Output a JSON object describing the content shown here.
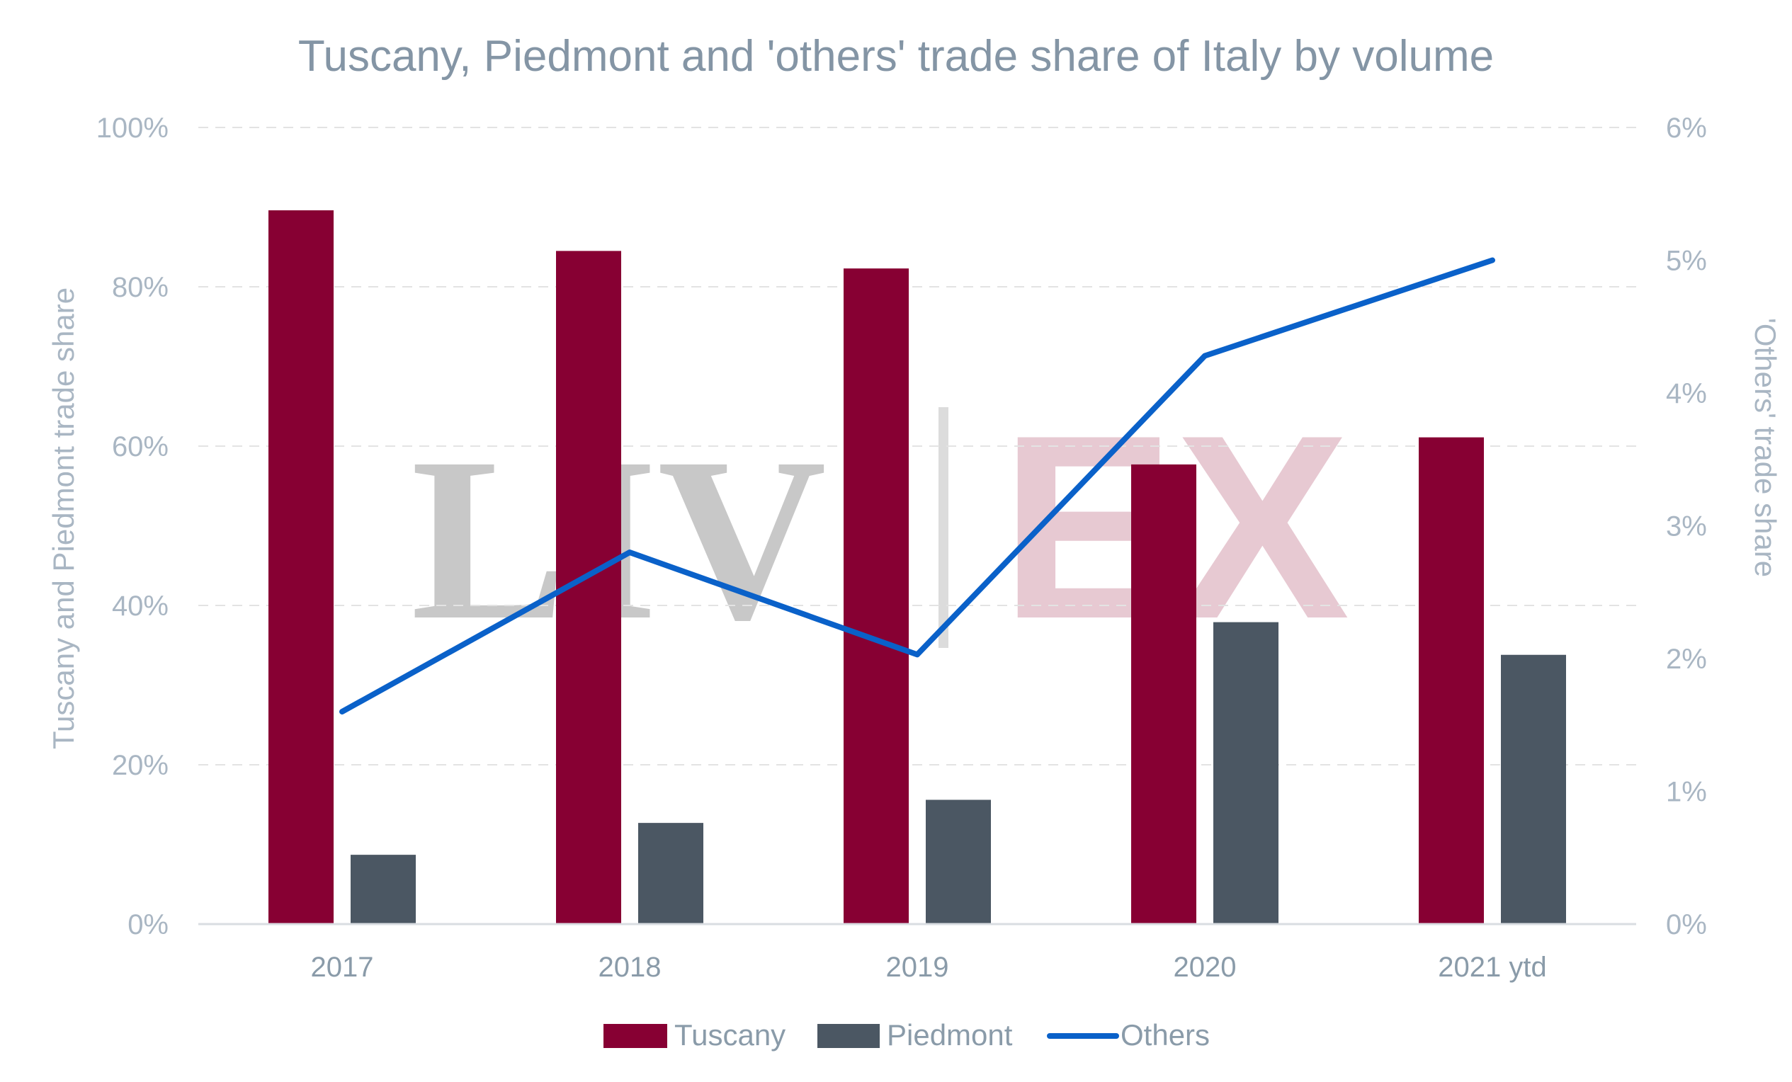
{
  "chart_data": {
    "type": "bar",
    "title": "Tuscany, Piedmont and 'others' trade share of Italy by volume",
    "categories": [
      "2017",
      "2018",
      "2019",
      "2020",
      "2021 ytd"
    ],
    "series": [
      {
        "name": "Tuscany",
        "type": "bar",
        "axis": "left",
        "color": "#870033",
        "values": [
          89.6,
          84.5,
          82.3,
          57.7,
          61.1
        ]
      },
      {
        "name": "Piedmont",
        "type": "bar",
        "axis": "left",
        "color": "#4b5763",
        "values": [
          8.7,
          12.7,
          15.6,
          37.9,
          33.8
        ]
      },
      {
        "name": "Others",
        "type": "line",
        "axis": "right",
        "color": "#0a61c9",
        "values": [
          1.6,
          2.8,
          2.03,
          4.28,
          5.0
        ]
      }
    ],
    "ylabel_left": "Tuscany and Piedmont trade share",
    "ylabel_right": "'Others' trade share",
    "ylim_left": [
      0,
      100
    ],
    "ylim_right": [
      0,
      6
    ],
    "yticks_left": [
      "0%",
      "20%",
      "40%",
      "60%",
      "80%",
      "100%"
    ],
    "yticks_right": [
      "0%",
      "1%",
      "2%",
      "3%",
      "4%",
      "5%",
      "6%"
    ],
    "grid": true,
    "legend_position": "bottom",
    "watermark": {
      "left": "LIV",
      "right": "EX"
    }
  }
}
